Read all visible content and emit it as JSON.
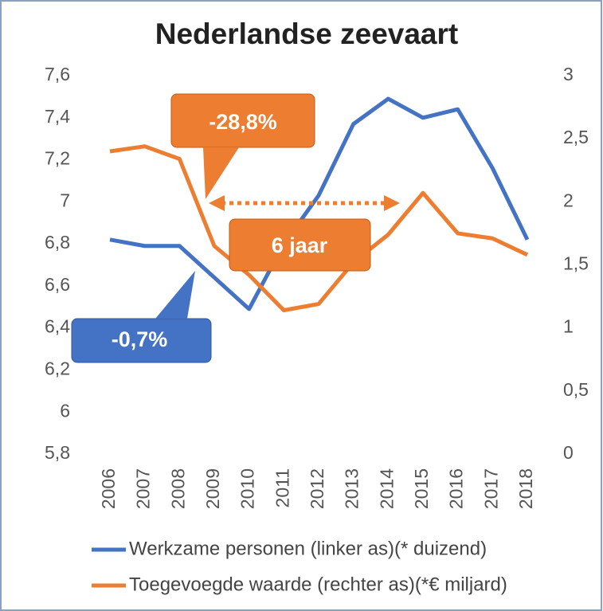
{
  "chart_data": {
    "type": "line",
    "title": "Nederlandse zeevaart",
    "categories": [
      "2006",
      "2007",
      "2008",
      "2009",
      "2010",
      "2011",
      "2012",
      "2013",
      "2014",
      "2015",
      "2016",
      "2017",
      "2018"
    ],
    "series": [
      {
        "name": "Werkzame personen (linker as)(* duizend)",
        "color": "#4472c4",
        "axis": "y",
        "values": [
          6.82,
          6.79,
          6.79,
          6.64,
          6.49,
          6.8,
          7.03,
          7.37,
          7.49,
          7.4,
          7.44,
          7.16,
          6.82
        ]
      },
      {
        "name": "Toegevoegde waarde (rechter as)(*€ miljard)",
        "color": "#ed7d31",
        "axis": "y2",
        "values": [
          2.4,
          2.44,
          2.34,
          1.65,
          1.42,
          1.14,
          1.19,
          1.52,
          1.74,
          2.07,
          1.75,
          1.71,
          1.58
        ]
      }
    ],
    "ylim": [
      5.8,
      7.6
    ],
    "yticks": [
      {
        "value": 5.8,
        "label": "5,8"
      },
      6,
      {
        "value": 6.2,
        "label": "6,2"
      },
      {
        "value": 6.4,
        "label": "6,4"
      },
      {
        "value": 6.6,
        "label": "6,6"
      },
      {
        "value": 6.8,
        "label": "6,8"
      },
      7,
      {
        "value": 7.2,
        "label": "7,2"
      },
      {
        "value": 7.4,
        "label": "7,4"
      },
      {
        "value": 7.6,
        "label": "7,6"
      }
    ],
    "y2lim": [
      0,
      3
    ],
    "y2ticks": [
      0,
      {
        "value": 0.5,
        "label": "0,5"
      },
      1,
      {
        "value": 1.5,
        "label": "1,5"
      },
      2,
      {
        "value": 2.5,
        "label": "2,5"
      },
      3
    ],
    "grid": false,
    "legend": "bottom",
    "annotations": [
      {
        "text": "-28,8%",
        "color": "#ed7d31"
      },
      {
        "text": "6 jaar",
        "color": "#ed7d31"
      },
      {
        "text": "-0,7%",
        "color": "#4472c4"
      }
    ]
  }
}
